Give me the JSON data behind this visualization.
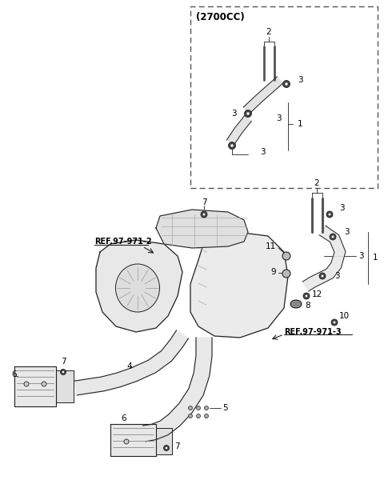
{
  "bg_color": "#ffffff",
  "line_color": "#222222",
  "figsize": [
    4.8,
    6.3
  ],
  "dpi": 100,
  "inset_label": "(2700CC)",
  "ref1_text": "REF.97-971-2",
  "ref2_text": "REF.97-971-3"
}
